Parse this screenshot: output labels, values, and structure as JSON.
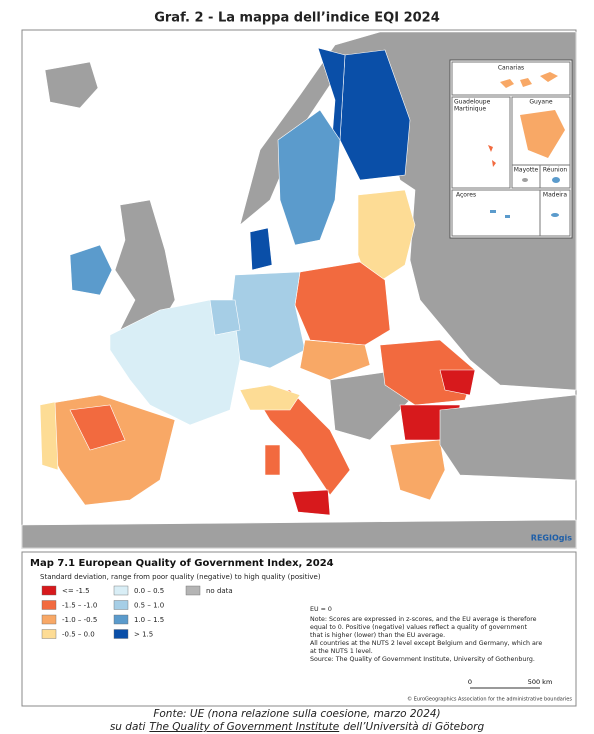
{
  "header": {
    "title": "Graf. 2 - La mappa dell’indice EQI 2024"
  },
  "insets": {
    "canarias": "Canarias",
    "guadeloupe": "Guadeloupe",
    "martinique": "Martinique",
    "guyane": "Guyane",
    "mayotte": "Mayotte",
    "reunion": "Réunion",
    "acores": "Açores",
    "madeira": "Madeira"
  },
  "brand": "REGIOgis",
  "legend": {
    "title": "Map 7.1 European Quality of Government Index, 2024",
    "subtitle": "Standard deviation, range from poor quality (negative) to high quality (positive)",
    "items": [
      {
        "label": "<= -1.5",
        "color": "#d7191c"
      },
      {
        "label": "-1.5 – -1.0",
        "color": "#f26a3f"
      },
      {
        "label": "-1.0 – -0.5",
        "color": "#f8a866"
      },
      {
        "label": "-0.5 – 0.0",
        "color": "#fddc95"
      },
      {
        "label": "0.0 – 0.5",
        "color": "#d9eef6"
      },
      {
        "label": "0.5 – 1.0",
        "color": "#a6cee6"
      },
      {
        "label": "1.0 – 1.5",
        "color": "#5b9bcc"
      },
      {
        "label": "> 1.5",
        "color": "#0a4fa8"
      },
      {
        "label": "no data",
        "color": "#b4b4b4"
      }
    ],
    "notes": [
      "EU = 0",
      "Note: Scores are expressed in z-scores, and the EU average is therefore equal to 0. Positive (negative) values reflect a quality of government that is higher (lower) than the EU average.",
      "All countries at the NUTS 2 level except Belgium and Germany, which are at the NUTS 1 level.",
      "Source: The Quality of Government Institute, University of Gothenburg."
    ],
    "scale": [
      "0",
      "500 km"
    ],
    "copyright": "© EuroGeographics Association for the administrative boundaries"
  },
  "footer": {
    "line1": "Fonte: UE (nona relazione sulla coesione, marzo 2024)",
    "line2": [
      "su dati",
      "The Quality of Government Institute",
      "dell’Università di Göteborg"
    ]
  }
}
